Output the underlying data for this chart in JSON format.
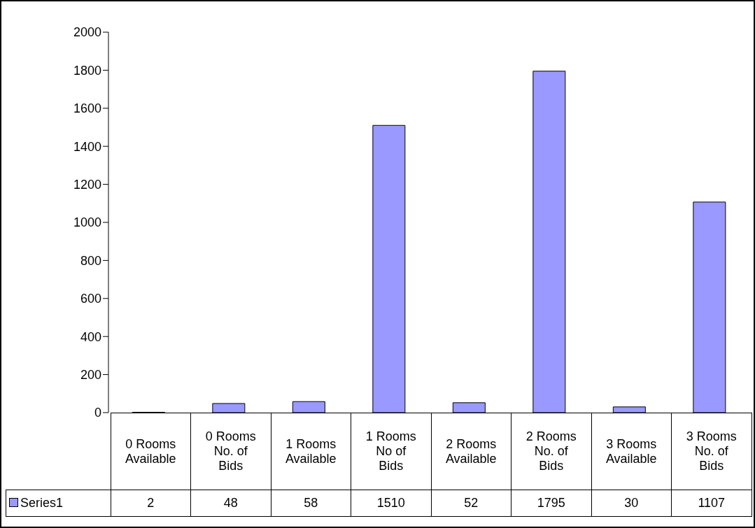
{
  "chart_data": {
    "type": "bar",
    "categories": [
      "0 Rooms Available",
      "0 Rooms No. of Bids",
      "1 Rooms Available",
      "1 Rooms No of Bids",
      "2 Rooms Available",
      "2 Rooms No. of Bids",
      "3 Rooms Available",
      "3 Rooms No. of Bids"
    ],
    "series": [
      {
        "name": "Series1",
        "color": "#9999ff",
        "values": [
          2,
          48,
          58,
          1510,
          52,
          1795,
          30,
          1107
        ]
      }
    ],
    "ylim": [
      0,
      2000
    ],
    "yticks": [
      0,
      200,
      400,
      600,
      800,
      1000,
      1200,
      1400,
      1600,
      1800,
      2000
    ],
    "legend": "bottom left",
    "data_labels": true
  }
}
